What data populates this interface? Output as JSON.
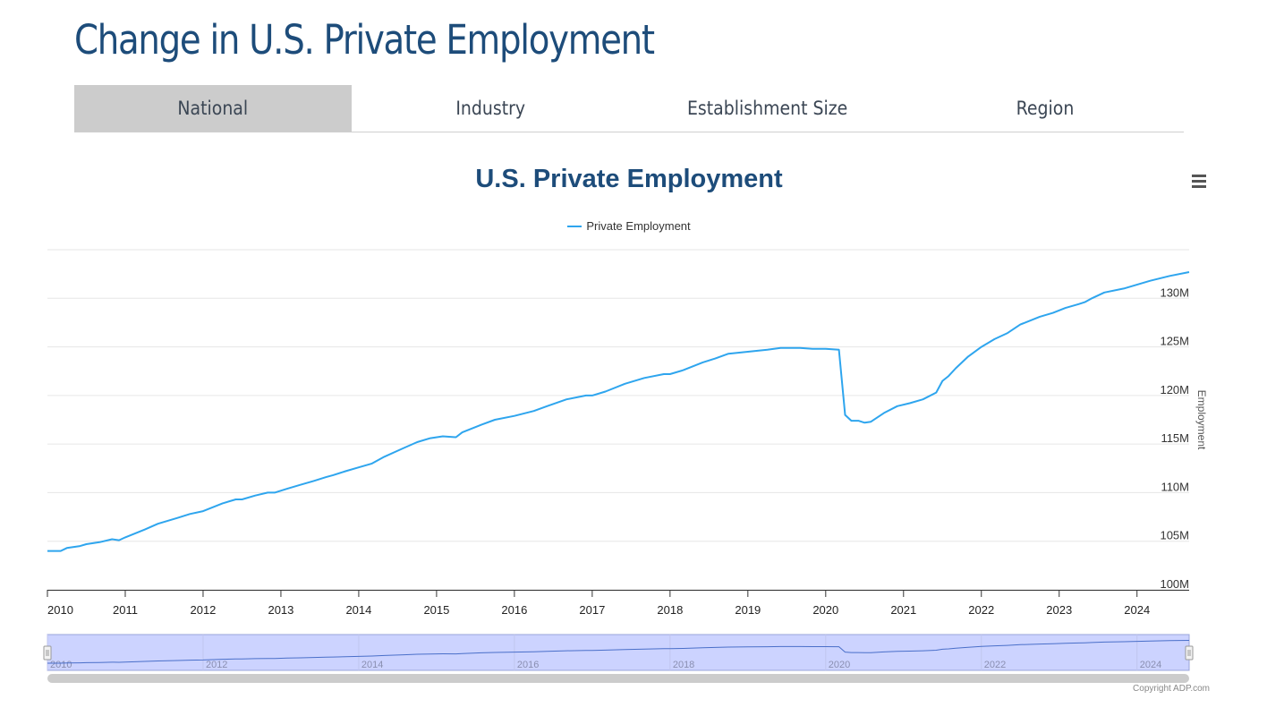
{
  "page": {
    "title": "Change in U.S. Private Employment"
  },
  "tabs": [
    {
      "label": "National",
      "active": true
    },
    {
      "label": "Industry",
      "active": false
    },
    {
      "label": "Establishment Size",
      "active": false
    },
    {
      "label": "Region",
      "active": false
    }
  ],
  "copyright": "Copyright ADP.com",
  "colors": {
    "title": "#1d4c7a",
    "series": "#2ea5ee",
    "navigator_fill": "#ccd3ff",
    "active_tab": "#cccccc"
  },
  "chart_data": {
    "type": "line",
    "title": "U.S. Private Employment",
    "xlabel": "",
    "ylabel": "Employment",
    "legend": [
      "Private Employment"
    ],
    "legend_position": "top-center",
    "y_axis_side": "right",
    "grid": true,
    "ylim": [
      100,
      135
    ],
    "yticks": [
      100,
      105,
      110,
      115,
      120,
      125,
      130
    ],
    "ytick_labels": [
      "100M",
      "105M",
      "110M",
      "115M",
      "120M",
      "125M",
      "130M"
    ],
    "xlim": [
      2010.0,
      2024.67
    ],
    "xticks": [
      2010,
      2011,
      2012,
      2013,
      2014,
      2015,
      2016,
      2017,
      2018,
      2019,
      2020,
      2021,
      2022,
      2023,
      2024
    ],
    "xtick_labels": [
      "2010",
      "2011",
      "2012",
      "2013",
      "2014",
      "2015",
      "2016",
      "2017",
      "2018",
      "2019",
      "2020",
      "2021",
      "2022",
      "2023",
      "2024"
    ],
    "navigator_labels": [
      "2010",
      "2012",
      "2014",
      "2016",
      "2018",
      "2020",
      "2022",
      "2024"
    ],
    "series": [
      {
        "name": "Private Employment",
        "unit": "millions",
        "x": [
          2010.0,
          2010.17,
          2010.25,
          2010.42,
          2010.5,
          2010.67,
          2010.83,
          2010.92,
          2011.0,
          2011.25,
          2011.42,
          2011.67,
          2011.83,
          2012.0,
          2012.25,
          2012.42,
          2012.5,
          2012.67,
          2012.83,
          2012.92,
          2013.08,
          2013.25,
          2013.42,
          2013.58,
          2013.67,
          2013.83,
          2014.0,
          2014.17,
          2014.33,
          2014.58,
          2014.75,
          2014.92,
          2015.08,
          2015.25,
          2015.33,
          2015.58,
          2015.75,
          2016.0,
          2016.25,
          2016.42,
          2016.67,
          2016.92,
          2017.0,
          2017.17,
          2017.42,
          2017.67,
          2017.92,
          2018.0,
          2018.17,
          2018.42,
          2018.58,
          2018.75,
          2019.0,
          2019.25,
          2019.42,
          2019.67,
          2019.83,
          2020.0,
          2020.17,
          2020.25,
          2020.33,
          2020.42,
          2020.5,
          2020.58,
          2020.75,
          2020.92,
          2021.08,
          2021.25,
          2021.42,
          2021.5,
          2021.58,
          2021.67,
          2021.83,
          2022.0,
          2022.17,
          2022.33,
          2022.5,
          2022.75,
          2022.92,
          2023.08,
          2023.25,
          2023.33,
          2023.42,
          2023.58,
          2023.83,
          2024.0,
          2024.17,
          2024.42,
          2024.67
        ],
        "values": [
          104.0,
          104.0,
          104.3,
          104.5,
          104.7,
          104.9,
          105.2,
          105.1,
          105.4,
          106.2,
          106.8,
          107.4,
          107.8,
          108.1,
          108.9,
          109.3,
          109.3,
          109.7,
          110.0,
          110.0,
          110.4,
          110.8,
          111.2,
          111.6,
          111.8,
          112.2,
          112.6,
          113.0,
          113.7,
          114.6,
          115.2,
          115.6,
          115.8,
          115.7,
          116.2,
          117.0,
          117.5,
          117.9,
          118.4,
          118.9,
          119.6,
          120.0,
          120.0,
          120.4,
          121.2,
          121.8,
          122.2,
          122.2,
          122.6,
          123.4,
          123.8,
          124.3,
          124.5,
          124.7,
          124.9,
          124.9,
          124.8,
          124.8,
          124.7,
          118.0,
          117.4,
          117.4,
          117.2,
          117.3,
          118.2,
          118.9,
          119.2,
          119.6,
          120.3,
          121.5,
          122.0,
          122.8,
          124.0,
          125.0,
          125.8,
          126.4,
          127.3,
          128.1,
          128.5,
          129.0,
          129.4,
          129.6,
          130.0,
          130.6,
          131.0,
          131.4,
          131.8,
          132.3,
          132.7
        ]
      }
    ]
  }
}
